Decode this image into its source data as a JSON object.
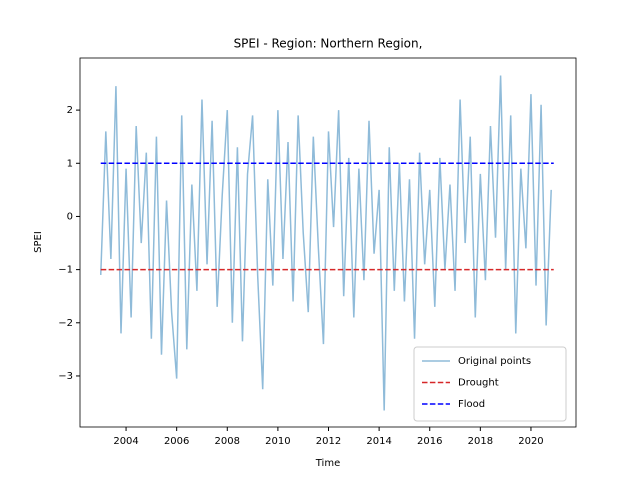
{
  "chart_data": {
    "type": "line",
    "title": "SPEI - Region: Northern Region,",
    "x_label": "Time",
    "y_label": "SPEI",
    "xlim": [
      2002.18,
      2021.78
    ],
    "ylim": [
      -3.96,
      2.98
    ],
    "xticks": [
      2004,
      2006,
      2008,
      2010,
      2012,
      2014,
      2016,
      2018,
      2020
    ],
    "yticks": [
      {
        "value": -3,
        "label": "−3"
      },
      {
        "value": -2,
        "label": "−2"
      },
      {
        "value": -1,
        "label": "−1"
      },
      0,
      1,
      2
    ],
    "grid": false,
    "legend_position": "lower right",
    "series": [
      {
        "name": "Original points",
        "color": "#8fbbd9",
        "dash": "solid",
        "x": [
          2003.0,
          2003.2,
          2003.4,
          2003.6,
          2003.8,
          2004.0,
          2004.2,
          2004.4,
          2004.6,
          2004.8,
          2005.0,
          2005.2,
          2005.4,
          2005.6,
          2005.8,
          2006.0,
          2006.2,
          2006.4,
          2006.6,
          2006.8,
          2007.0,
          2007.2,
          2007.4,
          2007.6,
          2007.8,
          2008.0,
          2008.2,
          2008.4,
          2008.6,
          2008.8,
          2009.0,
          2009.2,
          2009.4,
          2009.6,
          2009.8,
          2010.0,
          2010.2,
          2010.4,
          2010.6,
          2010.8,
          2011.0,
          2011.2,
          2011.4,
          2011.6,
          2011.8,
          2012.0,
          2012.2,
          2012.4,
          2012.6,
          2012.8,
          2013.0,
          2013.2,
          2013.4,
          2013.6,
          2013.8,
          2014.0,
          2014.2,
          2014.4,
          2014.6,
          2014.8,
          2015.0,
          2015.2,
          2015.4,
          2015.6,
          2015.8,
          2016.0,
          2016.2,
          2016.4,
          2016.6,
          2016.8,
          2017.0,
          2017.2,
          2017.4,
          2017.6,
          2017.8,
          2018.0,
          2018.2,
          2018.4,
          2018.6,
          2018.8,
          2019.0,
          2019.2,
          2019.4,
          2019.6,
          2019.8,
          2020.0,
          2020.2,
          2020.4,
          2020.6,
          2020.8
        ],
        "values": [
          -1.1,
          1.6,
          -0.8,
          2.45,
          -2.2,
          0.9,
          -1.9,
          1.7,
          -0.5,
          1.2,
          -2.3,
          1.5,
          -2.6,
          0.3,
          -1.8,
          -3.05,
          1.9,
          -2.5,
          0.6,
          -1.4,
          2.2,
          -0.9,
          1.8,
          -1.7,
          0.4,
          2.0,
          -2.0,
          1.3,
          -2.35,
          0.8,
          1.9,
          -1.1,
          -3.25,
          0.7,
          -1.3,
          2.0,
          -0.8,
          1.4,
          -1.6,
          1.9,
          -0.3,
          -1.8,
          1.5,
          -0.6,
          -2.4,
          1.6,
          -0.2,
          2.0,
          -1.5,
          1.1,
          -1.9,
          0.9,
          -1.2,
          1.8,
          -0.7,
          0.5,
          -3.65,
          1.3,
          -1.4,
          1.0,
          -1.6,
          0.7,
          -2.3,
          1.2,
          -0.9,
          0.5,
          -1.7,
          1.1,
          -1.0,
          0.6,
          -1.4,
          2.2,
          -0.5,
          1.5,
          -1.9,
          0.8,
          -1.2,
          1.7,
          -0.4,
          2.65,
          -1.0,
          1.9,
          -2.2,
          0.9,
          -0.6,
          2.3,
          -1.3,
          2.1,
          -2.05,
          0.5
        ]
      },
      {
        "name": "Drought",
        "color": "#d62728",
        "dash": "dashed",
        "x": [
          2003.0,
          2020.9
        ],
        "values": [
          -1,
          -1
        ]
      },
      {
        "name": "Flood",
        "color": "#0000ff",
        "dash": "dashed",
        "x": [
          2003.0,
          2020.9
        ],
        "values": [
          1,
          1
        ]
      }
    ]
  }
}
